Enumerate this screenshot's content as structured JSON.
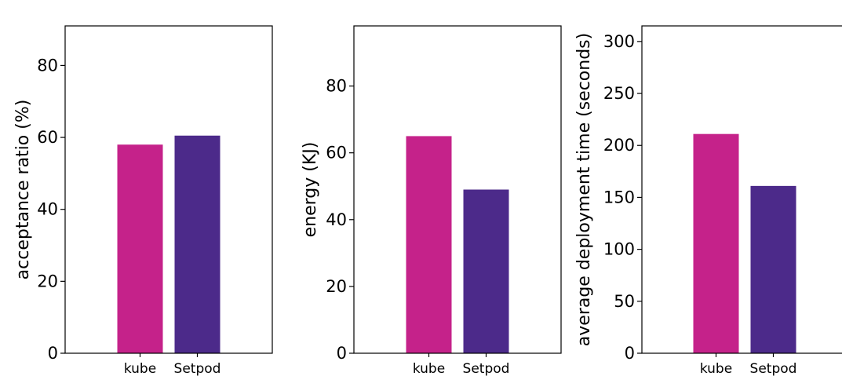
{
  "chart_data": [
    {
      "type": "bar",
      "categories": [
        "kube",
        "Setpod"
      ],
      "values": [
        58,
        60.5
      ],
      "colors": [
        "#c5228a",
        "#4c2a8a"
      ],
      "ylabel": "acceptance ratio (%)",
      "ylim": [
        0,
        91
      ],
      "yticks": [
        0,
        20,
        40,
        60,
        80
      ],
      "grid": false
    },
    {
      "type": "bar",
      "categories": [
        "kube",
        "Setpod"
      ],
      "values": [
        65,
        49
      ],
      "colors": [
        "#c5228a",
        "#4c2a8a"
      ],
      "ylabel": "energy (KJ)",
      "ylim": [
        0,
        98
      ],
      "yticks": [
        0,
        20,
        40,
        60,
        80
      ],
      "grid": false
    },
    {
      "type": "bar",
      "categories": [
        "kube",
        "Setpod"
      ],
      "values": [
        211,
        161
      ],
      "colors": [
        "#c5228a",
        "#4c2a8a"
      ],
      "ylabel": "average deployment time (seconds)",
      "ylim": [
        0,
        315
      ],
      "yticks": [
        0,
        50,
        100,
        150,
        200,
        250,
        300
      ],
      "grid": false
    }
  ]
}
